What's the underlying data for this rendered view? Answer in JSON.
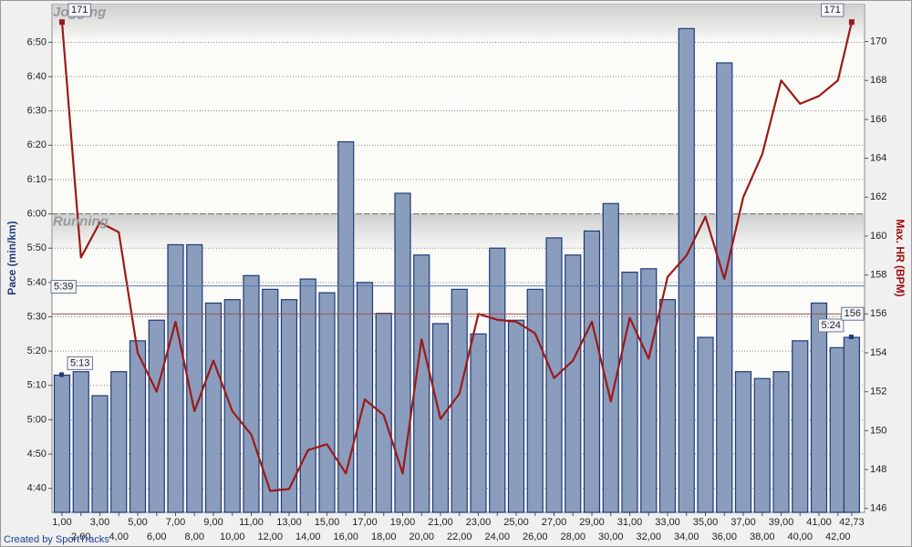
{
  "chart_data": {
    "type": "bar",
    "ylabel": "Pace (min/km)",
    "y2label": "Max. HR (BPM)",
    "footer": "Created by SportTracks",
    "x": [
      1,
      2,
      3,
      4,
      5,
      6,
      7,
      8,
      9,
      10,
      11,
      12,
      13,
      14,
      15,
      16,
      17,
      18,
      19,
      20,
      21,
      22,
      23,
      24,
      25,
      26,
      27,
      28,
      29,
      30,
      31,
      32,
      33,
      34,
      35,
      36,
      37,
      38,
      39,
      40,
      41,
      42,
      42.73
    ],
    "xlim": [
      0.47,
      43.41
    ],
    "xticks": [
      {
        "value": 1,
        "label": "1,00"
      },
      {
        "value": 2,
        "label": "2,00"
      },
      {
        "value": 3,
        "label": "3,00"
      },
      {
        "value": 4,
        "label": "4,00"
      },
      {
        "value": 5,
        "label": "5,00"
      },
      {
        "value": 6,
        "label": "6,00"
      },
      {
        "value": 7,
        "label": "7,00"
      },
      {
        "value": 8,
        "label": "8,00"
      },
      {
        "value": 9,
        "label": "9,00"
      },
      {
        "value": 10,
        "label": "10,00"
      },
      {
        "value": 11,
        "label": "11,00"
      },
      {
        "value": 12,
        "label": "12,00"
      },
      {
        "value": 13,
        "label": "13,00"
      },
      {
        "value": 14,
        "label": "14,00"
      },
      {
        "value": 15,
        "label": "15,00"
      },
      {
        "value": 16,
        "label": "16,00"
      },
      {
        "value": 17,
        "label": "17,00"
      },
      {
        "value": 18,
        "label": "18,00"
      },
      {
        "value": 19,
        "label": "19,00"
      },
      {
        "value": 20,
        "label": "20,00"
      },
      {
        "value": 21,
        "label": "21,00"
      },
      {
        "value": 22,
        "label": "22,00"
      },
      {
        "value": 23,
        "label": "23,00"
      },
      {
        "value": 24,
        "label": "24,00"
      },
      {
        "value": 25,
        "label": "25,00"
      },
      {
        "value": 26,
        "label": "26,00"
      },
      {
        "value": 27,
        "label": "27,00"
      },
      {
        "value": 28,
        "label": "28,00"
      },
      {
        "value": 29,
        "label": "29,00"
      },
      {
        "value": 30,
        "label": "30,00"
      },
      {
        "value": 31,
        "label": "31,00"
      },
      {
        "value": 32,
        "label": "32,00"
      },
      {
        "value": 33,
        "label": "33,00"
      },
      {
        "value": 34,
        "label": "34,00"
      },
      {
        "value": 35,
        "label": "35,00"
      },
      {
        "value": 36,
        "label": "36,00"
      },
      {
        "value": 37,
        "label": "37,00"
      },
      {
        "value": 38,
        "label": "38,00"
      },
      {
        "value": 39,
        "label": "39,00"
      },
      {
        "value": 40,
        "label": "40,00"
      },
      {
        "value": 41,
        "label": "41,00"
      },
      {
        "value": 42,
        "label": "42,00"
      },
      {
        "value": 42.73,
        "label": "42,73"
      }
    ],
    "ylim": [
      273,
      421
    ],
    "yticks": [
      {
        "value": 280,
        "label": "4:40"
      },
      {
        "value": 290,
        "label": "4:50"
      },
      {
        "value": 300,
        "label": "5:00"
      },
      {
        "value": 310,
        "label": "5:10"
      },
      {
        "value": 320,
        "label": "5:20"
      },
      {
        "value": 330,
        "label": "5:30"
      },
      {
        "value": 340,
        "label": "5:40"
      },
      {
        "value": 350,
        "label": "5:50"
      },
      {
        "value": 360,
        "label": "6:00"
      },
      {
        "value": 370,
        "label": "6:10"
      },
      {
        "value": 380,
        "label": "6:20"
      },
      {
        "value": 390,
        "label": "6:30"
      },
      {
        "value": 400,
        "label": "6:40"
      },
      {
        "value": 410,
        "label": "6:50"
      }
    ],
    "y2lim": [
      145.8,
      171.9
    ],
    "y2ticks": [
      146,
      148,
      150,
      152,
      154,
      156,
      158,
      160,
      162,
      164,
      166,
      168,
      170
    ],
    "grid": true,
    "series": [
      {
        "type": "bar",
        "color": "#8a9dbd",
        "values": [
          313,
          314,
          307,
          314,
          323,
          329,
          351,
          351,
          334,
          335,
          342,
          338,
          335,
          341,
          337,
          381,
          340,
          331,
          366,
          348,
          328,
          338,
          325,
          350,
          329,
          338,
          353,
          348,
          355,
          363,
          343,
          344,
          335,
          414,
          324,
          404,
          314,
          312,
          314,
          323,
          334,
          321,
          324
        ],
        "value_labels": [
          "5:13",
          null,
          null,
          null,
          null,
          null,
          null,
          null,
          null,
          null,
          null,
          null,
          null,
          null,
          null,
          null,
          null,
          null,
          null,
          null,
          null,
          null,
          null,
          null,
          null,
          null,
          null,
          null,
          null,
          null,
          null,
          null,
          null,
          null,
          null,
          null,
          null,
          null,
          null,
          null,
          null,
          null,
          "5:24"
        ]
      },
      {
        "type": "line",
        "axis": "y2",
        "color": "#9b1a1a",
        "values": [
          171,
          158.9,
          160.7,
          160.2,
          154,
          152,
          155.6,
          151,
          153.6,
          151,
          149.8,
          146.9,
          147,
          149,
          149.3,
          147.8,
          151.6,
          150.8,
          147.8,
          154.7,
          150.6,
          151.9,
          156,
          155.7,
          155.6,
          155,
          152.7,
          153.6,
          155.6,
          151.5,
          155.8,
          153.7,
          157.9,
          159,
          161,
          157.8,
          162,
          164.2,
          168,
          166.8,
          167.2,
          168,
          171
        ],
        "value_labels": [
          "171",
          null,
          null,
          null,
          null,
          null,
          null,
          null,
          null,
          null,
          null,
          null,
          null,
          null,
          null,
          null,
          null,
          null,
          null,
          null,
          null,
          null,
          null,
          null,
          null,
          null,
          null,
          null,
          null,
          null,
          null,
          null,
          null,
          null,
          null,
          null,
          null,
          null,
          null,
          null,
          null,
          null,
          "171"
        ]
      }
    ],
    "reference_lines": [
      {
        "axis": "y",
        "value": 339,
        "label": "5:39",
        "color": "#5577aa"
      },
      {
        "axis": "y2",
        "value": 156,
        "label": "156",
        "color": "#a05050"
      }
    ],
    "zones": [
      {
        "label": "Jogging"
      },
      {
        "label": "Running",
        "value": 360
      }
    ]
  }
}
